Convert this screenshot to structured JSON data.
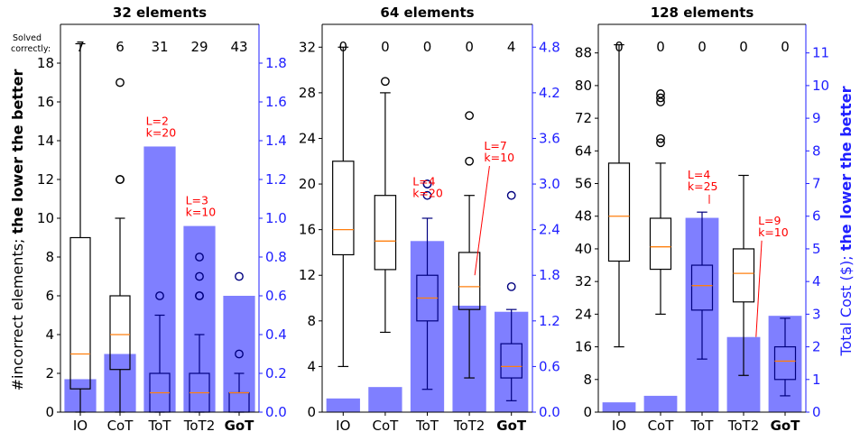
{
  "axis_labels": {
    "left_plain": "#incorrect elements; ",
    "left_bold": "the lower the better",
    "right_plain": "Total Cost ($); ",
    "right_bold": "the lower the better"
  },
  "solved_label": [
    "Solved",
    "correctly:"
  ],
  "colors": {
    "cost_bar": "#7f7fff",
    "box_on_bar": "#00007f",
    "box_plain": "#000000",
    "median": "#ff7f0e",
    "annotation": "#ff0000",
    "right_axis": "#1f1fff"
  },
  "chart_data": [
    {
      "type": "box+bar",
      "title": "32 elements",
      "categories": [
        "IO",
        "CoT",
        "ToT",
        "ToT2",
        "GoT"
      ],
      "bold_category": "GoT",
      "ylim": [
        0,
        20
      ],
      "yticks": [
        0,
        2,
        4,
        6,
        8,
        10,
        12,
        14,
        16,
        18
      ],
      "y2lim": [
        0,
        2.0
      ],
      "y2ticks": [
        0.0,
        0.2,
        0.4,
        0.6,
        0.8,
        1.0,
        1.2,
        1.4,
        1.6,
        1.8
      ],
      "y2_decimals": 1,
      "solved_correctly": [
        7,
        6,
        31,
        29,
        43
      ],
      "cost": [
        0.17,
        0.3,
        1.37,
        0.96,
        0.6
      ],
      "boxes": [
        {
          "whislo": 0,
          "q1": 1.2,
          "med": 3,
          "q3": 9,
          "whishi": 19,
          "fliers": []
        },
        {
          "whislo": 0,
          "q1": 2.2,
          "med": 4,
          "q3": 6,
          "whishi": 10,
          "fliers": [
            12,
            12,
            17
          ]
        },
        {
          "whislo": 0,
          "q1": 0,
          "med": 1,
          "q3": 2,
          "whishi": 5,
          "fliers": [
            6
          ]
        },
        {
          "whislo": 0,
          "q1": 0,
          "med": 1,
          "q3": 2,
          "whishi": 4,
          "fliers": [
            6,
            6,
            7,
            8
          ]
        },
        {
          "whislo": 0,
          "q1": 0,
          "med": 1,
          "q3": 1,
          "whishi": 2,
          "fliers": [
            3,
            7
          ]
        }
      ],
      "annotations": [
        {
          "text": [
            "L=2",
            "k=20"
          ],
          "category": "ToT"
        },
        {
          "text": [
            "L=3",
            "k=10"
          ],
          "category": "ToT2"
        }
      ]
    },
    {
      "type": "box+bar",
      "title": "64 elements",
      "categories": [
        "IO",
        "CoT",
        "ToT",
        "ToT2",
        "GoT"
      ],
      "bold_category": "GoT",
      "ylim": [
        0,
        34
      ],
      "yticks": [
        0,
        4,
        8,
        12,
        16,
        20,
        24,
        28,
        32
      ],
      "y2lim": [
        0,
        5.1
      ],
      "y2ticks": [
        0.0,
        0.6,
        1.2,
        1.8,
        2.4,
        3.0,
        3.6,
        4.2,
        4.8
      ],
      "y2_decimals": 1,
      "solved_correctly": [
        0,
        0,
        0,
        0,
        4
      ],
      "cost": [
        0.18,
        0.33,
        2.25,
        1.4,
        1.32
      ],
      "boxes": [
        {
          "whislo": 4,
          "q1": 13.8,
          "med": 16,
          "q3": 22,
          "whishi": 32,
          "fliers": []
        },
        {
          "whislo": 7,
          "q1": 12.5,
          "med": 15,
          "q3": 19,
          "whishi": 28,
          "fliers": [
            29
          ]
        },
        {
          "whislo": 2,
          "q1": 8,
          "med": 10,
          "q3": 12,
          "whishi": 17,
          "fliers": [
            19,
            20,
            20
          ]
        },
        {
          "whislo": 3,
          "q1": 9,
          "med": 11,
          "q3": 14,
          "whishi": 19,
          "fliers": [
            22,
            26
          ]
        },
        {
          "whislo": 1,
          "q1": 3,
          "med": 4,
          "q3": 6,
          "whishi": 9,
          "fliers": [
            11,
            19
          ]
        }
      ],
      "annotations": [
        {
          "text": [
            "L=4",
            "k=20"
          ],
          "category": "ToT"
        },
        {
          "text": [
            "L=7",
            "k=10"
          ],
          "category": "ToT2"
        }
      ]
    },
    {
      "type": "box+bar",
      "title": "128 elements",
      "categories": [
        "IO",
        "CoT",
        "ToT",
        "ToT2",
        "GoT"
      ],
      "bold_category": "GoT",
      "ylim": [
        0,
        95
      ],
      "yticks": [
        0,
        8,
        16,
        24,
        32,
        40,
        48,
        56,
        64,
        72,
        80,
        88
      ],
      "y2lim": [
        0,
        11.875
      ],
      "y2ticks": [
        0,
        1,
        2,
        3,
        4,
        5,
        6,
        7,
        8,
        9,
        10,
        11
      ],
      "y2_decimals": 0,
      "solved_correctly": [
        0,
        0,
        0,
        0,
        0
      ],
      "cost": [
        0.3,
        0.5,
        5.95,
        2.3,
        2.95
      ],
      "boxes": [
        {
          "whislo": 16,
          "q1": 37,
          "med": 48,
          "q3": 61,
          "whishi": 90,
          "fliers": []
        },
        {
          "whislo": 24,
          "q1": 35,
          "med": 40.5,
          "q3": 47.5,
          "whishi": 61,
          "fliers": [
            66,
            67,
            76,
            77,
            78
          ]
        },
        {
          "whislo": 13,
          "q1": 25,
          "med": 31,
          "q3": 36,
          "whishi": 49,
          "fliers": []
        },
        {
          "whislo": 9,
          "q1": 27,
          "med": 34,
          "q3": 40,
          "whishi": 58,
          "fliers": []
        },
        {
          "whislo": 4,
          "q1": 8,
          "med": 12.5,
          "q3": 16,
          "whishi": 23,
          "fliers": []
        }
      ],
      "annotations": [
        {
          "text": [
            "L=4",
            "k=25"
          ],
          "category": "ToT"
        },
        {
          "text": [
            "L=9",
            "k=10"
          ],
          "category": "ToT2"
        }
      ]
    }
  ]
}
